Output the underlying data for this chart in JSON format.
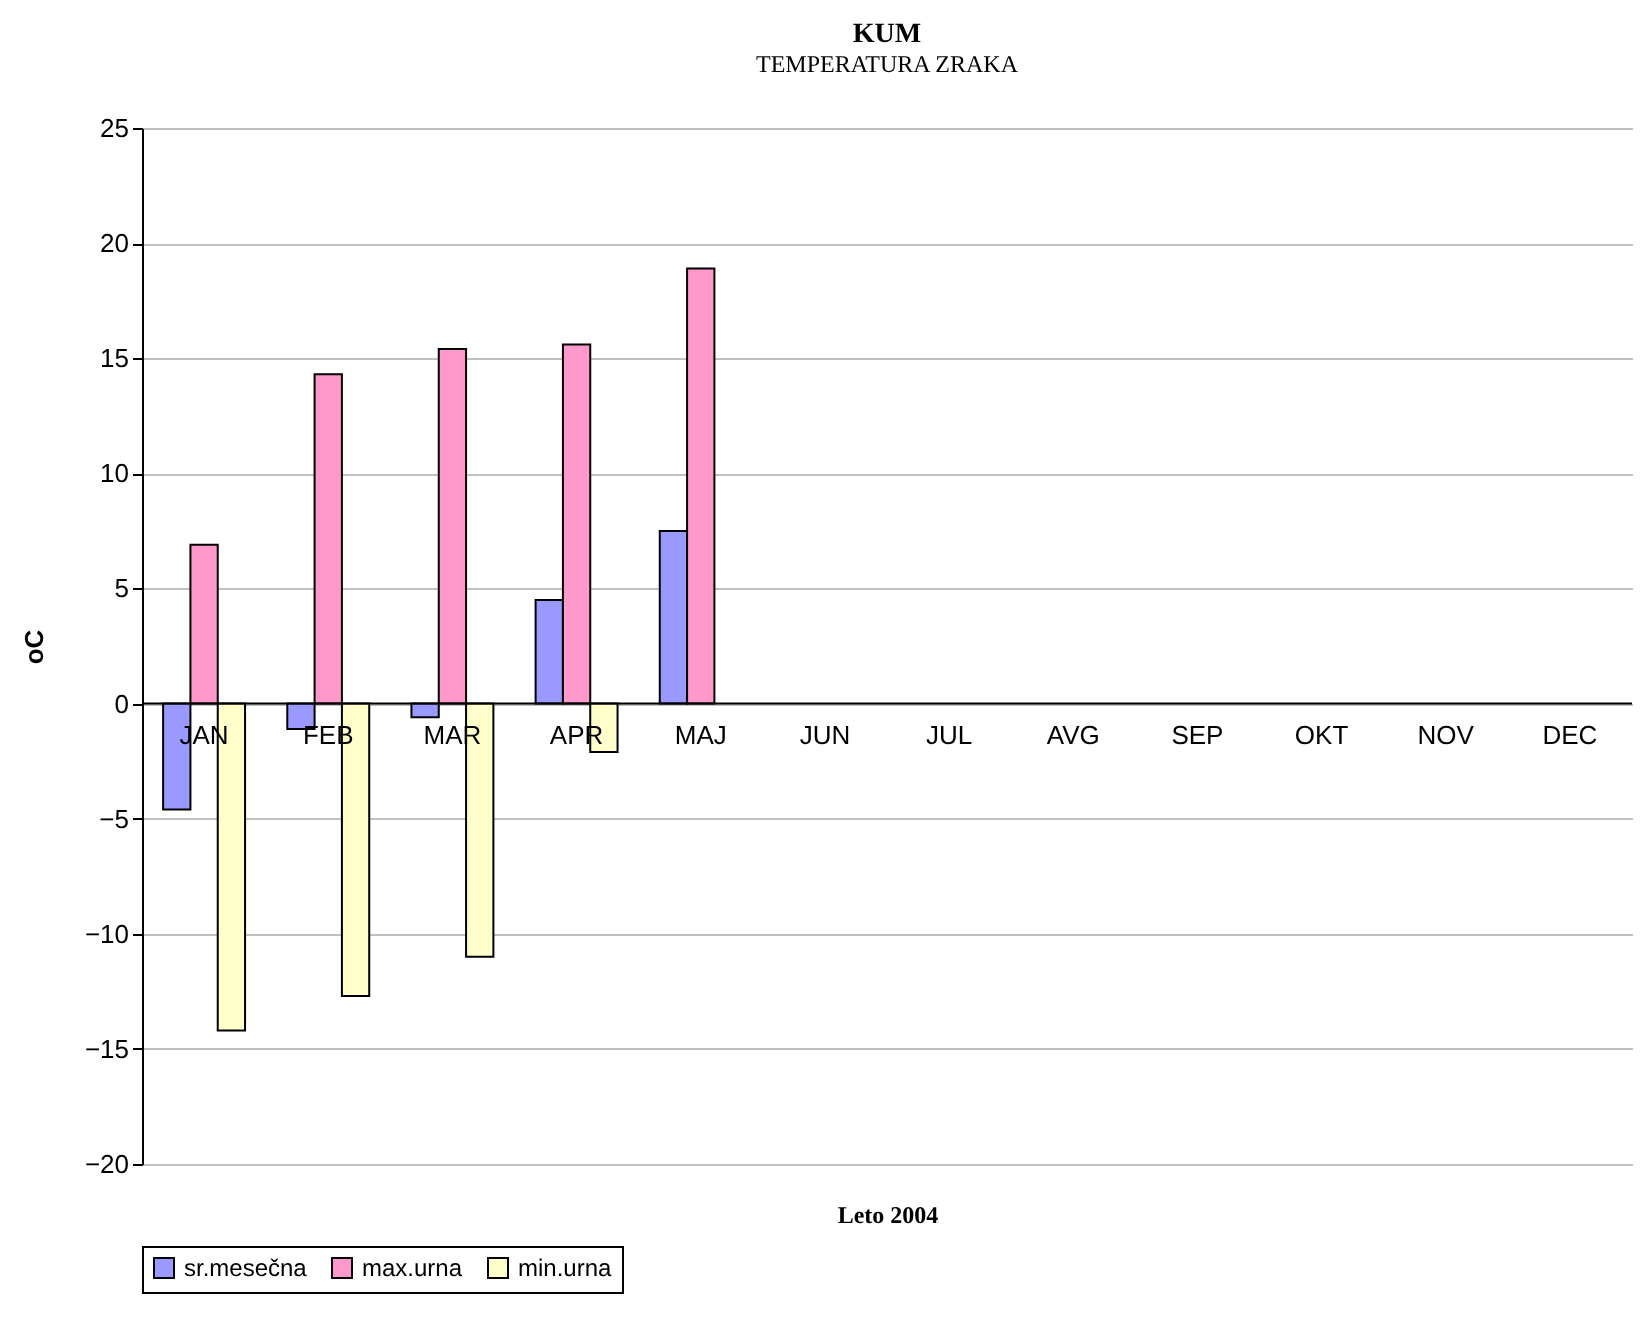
{
  "chart_data": {
    "type": "bar",
    "title": "KUM",
    "subtitle": "TEMPERATURA ZRAKA",
    "xlabel": "Leto 2004",
    "ylabel": "oC",
    "categories": [
      "JAN",
      "FEB",
      "MAR",
      "APR",
      "MAJ",
      "JUN",
      "JUL",
      "AVG",
      "SEP",
      "OKT",
      "NOV",
      "DEC"
    ],
    "series": [
      {
        "name": "sr.mesečna",
        "color": "#9999ff",
        "values": [
          -4.6,
          -1.1,
          -0.6,
          4.5,
          7.5,
          null,
          null,
          null,
          null,
          null,
          null,
          null
        ]
      },
      {
        "name": "max.urna",
        "color": "#ff99cc",
        "values": [
          6.9,
          14.3,
          15.4,
          15.6,
          18.9,
          null,
          null,
          null,
          null,
          null,
          null,
          null
        ]
      },
      {
        "name": "min.urna",
        "color": "#ffffcc",
        "values": [
          -14.2,
          -12.7,
          -11.0,
          -2.1,
          null,
          null,
          null,
          null,
          null,
          null,
          null,
          null
        ]
      }
    ],
    "ylim": [
      -20,
      25
    ],
    "yticks": [
      -20,
      -15,
      -10,
      -5,
      0,
      5,
      10,
      15,
      20,
      25
    ],
    "grid": "y",
    "legend": "bottom"
  }
}
